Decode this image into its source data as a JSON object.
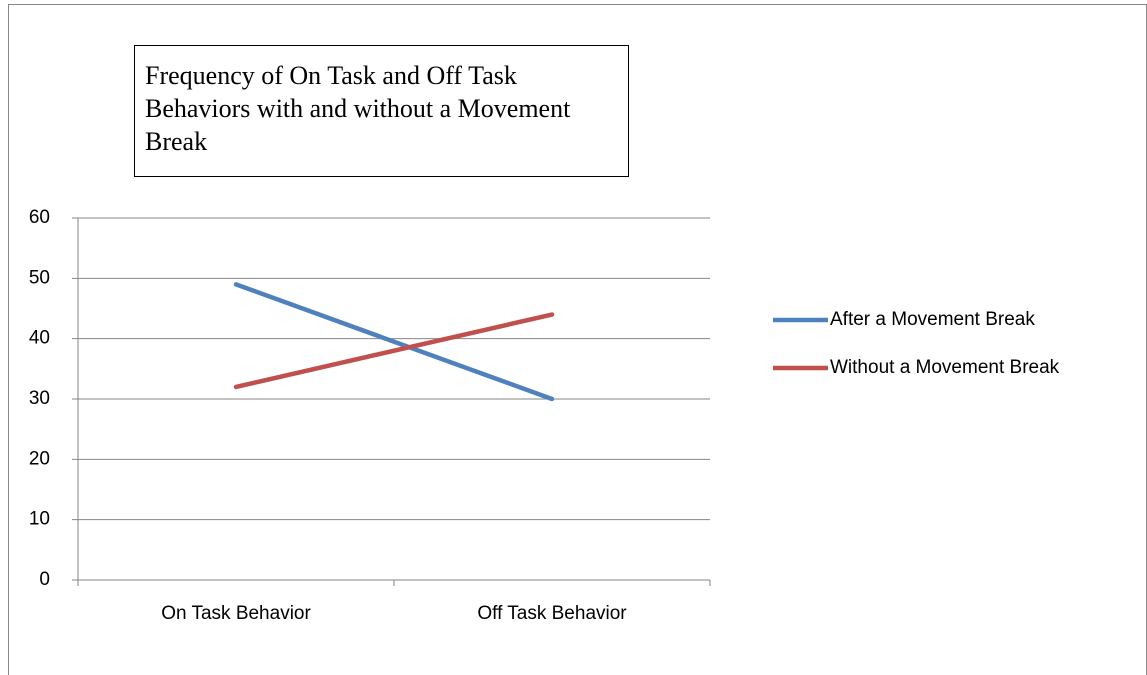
{
  "chart_data": {
    "type": "line",
    "title": "Frequency of On Task and Off Task Behaviors with and without a Movement Break",
    "categories": [
      "On Task Behavior",
      "Off Task Behavior"
    ],
    "series": [
      {
        "name": "After a Movement Break",
        "color": "#4f81bd",
        "values": [
          49,
          30
        ]
      },
      {
        "name": "Without a Movement Break",
        "color": "#c0504d",
        "values": [
          32,
          44
        ]
      }
    ],
    "ylim": [
      0,
      60
    ],
    "yticks": [
      0,
      10,
      20,
      30,
      40,
      50,
      60
    ],
    "grid": true,
    "legend": "right"
  }
}
